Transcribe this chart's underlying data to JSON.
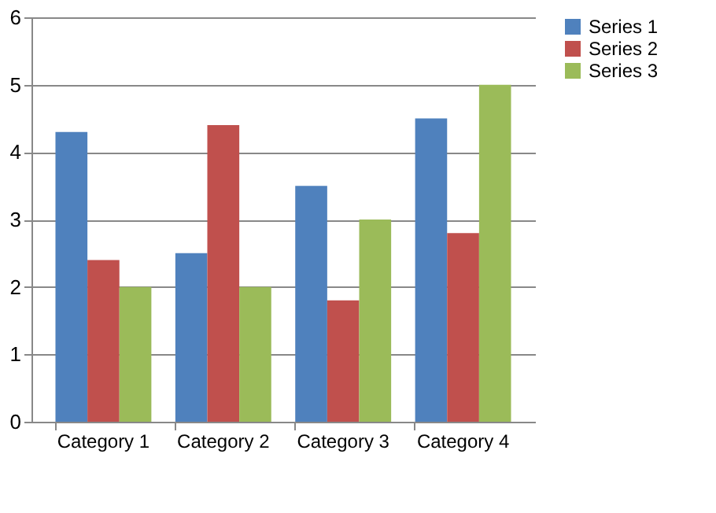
{
  "chart_data": {
    "type": "bar",
    "categories": [
      "Category 1",
      "Category 2",
      "Category 3",
      "Category 4"
    ],
    "series": [
      {
        "name": "Series 1",
        "color": "#4f81bd",
        "values": [
          4.3,
          2.5,
          3.5,
          4.5
        ]
      },
      {
        "name": "Series 2",
        "color": "#c0504d",
        "values": [
          2.4,
          4.4,
          1.8,
          2.8
        ]
      },
      {
        "name": "Series 3",
        "color": "#9bbb59",
        "values": [
          2,
          2,
          3,
          5
        ]
      }
    ],
    "ylim": [
      0,
      6
    ],
    "yticks": [
      0,
      1,
      2,
      3,
      4,
      5,
      6
    ],
    "grid": "y",
    "legend": "right"
  }
}
